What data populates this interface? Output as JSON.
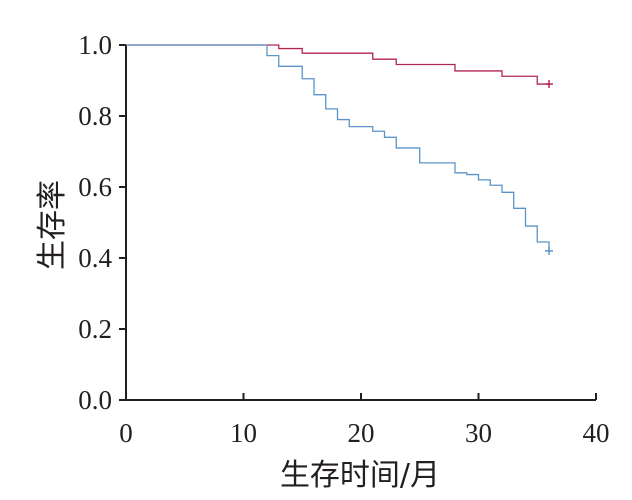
{
  "chart_data": {
    "type": "line",
    "title": "",
    "xlabel": "生存时间/月",
    "ylabel": "生存率",
    "xlim": [
      0,
      40
    ],
    "ylim": [
      0,
      1.0
    ],
    "xticks": [
      0,
      10,
      20,
      30,
      40
    ],
    "xtick_labels": [
      "0",
      "10",
      "20",
      "30",
      "40"
    ],
    "yticks": [
      0,
      0.2,
      0.4,
      0.6,
      0.8,
      1.0
    ],
    "ytick_labels": [
      "0.0",
      "0.2",
      "0.4",
      "0.6",
      "0.8",
      "1.0"
    ],
    "grid": false,
    "legend": "none",
    "series": [
      {
        "color": "#b0274f",
        "step": true,
        "censor_marker": {
          "x": 36,
          "y": 0.89
        },
        "x": [
          0,
          13,
          15,
          21,
          23,
          28,
          32,
          35,
          36
        ],
        "y": [
          1.0,
          0.99,
          0.977,
          0.96,
          0.945,
          0.927,
          0.912,
          0.89,
          0.89
        ]
      },
      {
        "color": "#5b94c8",
        "step": true,
        "censor_marker": {
          "x": 36,
          "y": 0.42
        },
        "x": [
          0,
          12,
          13,
          15,
          16,
          17,
          18,
          19,
          21,
          22,
          23,
          25,
          26,
          28,
          29,
          30,
          31,
          32,
          33,
          34,
          35,
          36
        ],
        "y": [
          1.0,
          0.97,
          0.94,
          0.905,
          0.86,
          0.82,
          0.79,
          0.77,
          0.757,
          0.74,
          0.71,
          0.668,
          0.668,
          0.64,
          0.635,
          0.62,
          0.605,
          0.585,
          0.54,
          0.49,
          0.445,
          0.42
        ]
      }
    ]
  }
}
